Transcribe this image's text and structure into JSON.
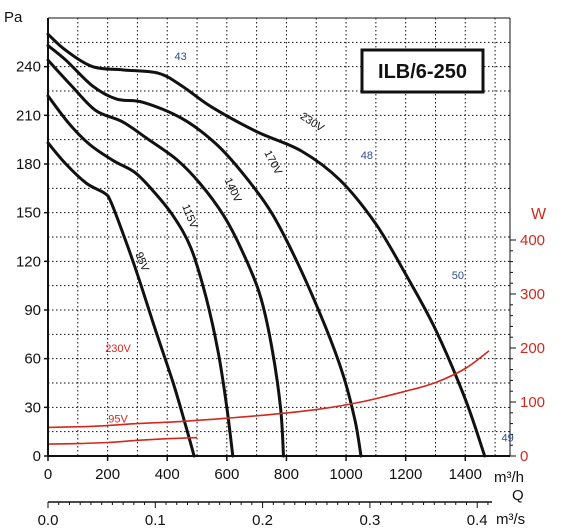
{
  "chart_data": {
    "type": "line",
    "title": "",
    "model_label": "ILB/6-250",
    "x_axis": {
      "unit": "m³/h",
      "range": [
        0,
        1550
      ],
      "ticks": [
        {
          "v": 0,
          "label": "0"
        },
        {
          "v": 200,
          "label": "200"
        },
        {
          "v": 400,
          "label": "400"
        },
        {
          "v": 600,
          "label": "600"
        },
        {
          "v": 800,
          "label": "800"
        },
        {
          "v": 1000,
          "label": "1000"
        },
        {
          "v": 1200,
          "label": "1200"
        },
        {
          "v": 1400,
          "label": "1400"
        }
      ]
    },
    "x2_axis": {
      "label": "Q",
      "unit": "m³/s",
      "ticks": [
        {
          "v": 0,
          "label": "0.0"
        },
        {
          "v": 360,
          "label": "0.1"
        },
        {
          "v": 720,
          "label": "0.2"
        },
        {
          "v": 1080,
          "label": "0.3"
        },
        {
          "v": 1440,
          "label": "0.4"
        }
      ]
    },
    "y_axis": {
      "unit": "Pa",
      "range": [
        0,
        270
      ],
      "ticks": [
        {
          "v": 0,
          "label": "0"
        },
        {
          "v": 30,
          "label": "30"
        },
        {
          "v": 60,
          "label": "60"
        },
        {
          "v": 90,
          "label": "90"
        },
        {
          "v": 120,
          "label": "120"
        },
        {
          "v": 150,
          "label": "150"
        },
        {
          "v": 180,
          "label": "180"
        },
        {
          "v": 210,
          "label": "210"
        },
        {
          "v": 240,
          "label": "240"
        }
      ]
    },
    "y2_axis": {
      "unit": "W",
      "range": [
        0,
        400
      ],
      "ticks": [
        {
          "v": 0,
          "label": "0"
        },
        {
          "v": 100,
          "label": "100"
        },
        {
          "v": 200,
          "label": "200"
        },
        {
          "v": 300,
          "label": "300"
        },
        {
          "v": 400,
          "label": "400"
        }
      ]
    },
    "grid": true,
    "pressure_series": [
      {
        "name": "230V",
        "label_at": {
          "x": 880,
          "y": 204,
          "rot": 33
        },
        "points": [
          [
            0,
            260
          ],
          [
            60,
            250
          ],
          [
            150,
            240
          ],
          [
            250,
            238
          ],
          [
            370,
            236
          ],
          [
            450,
            228
          ],
          [
            550,
            215
          ],
          [
            700,
            200
          ],
          [
            850,
            188
          ],
          [
            980,
            170
          ],
          [
            1100,
            143
          ],
          [
            1200,
            112
          ],
          [
            1300,
            78
          ],
          [
            1400,
            35
          ],
          [
            1465,
            0
          ]
        ]
      },
      {
        "name": "170V",
        "label_at": {
          "x": 745,
          "y": 180,
          "rot": 62
        },
        "points": [
          [
            0,
            253
          ],
          [
            60,
            244
          ],
          [
            150,
            228
          ],
          [
            230,
            220
          ],
          [
            320,
            218
          ],
          [
            450,
            208
          ],
          [
            560,
            193
          ],
          [
            650,
            175
          ],
          [
            750,
            150
          ],
          [
            840,
            118
          ],
          [
            930,
            80
          ],
          [
            990,
            50
          ],
          [
            1030,
            22
          ],
          [
            1050,
            0
          ]
        ]
      },
      {
        "name": "140V",
        "label_at": {
          "x": 610,
          "y": 163,
          "rot": 65
        },
        "points": [
          [
            0,
            244
          ],
          [
            80,
            228
          ],
          [
            160,
            213
          ],
          [
            250,
            206
          ],
          [
            330,
            196
          ],
          [
            430,
            183
          ],
          [
            510,
            168
          ],
          [
            590,
            148
          ],
          [
            650,
            127
          ],
          [
            710,
            100
          ],
          [
            750,
            68
          ],
          [
            780,
            30
          ],
          [
            790,
            0
          ]
        ]
      },
      {
        "name": "115V",
        "label_at": {
          "x": 465,
          "y": 147,
          "rot": 68
        },
        "points": [
          [
            0,
            222
          ],
          [
            70,
            205
          ],
          [
            140,
            192
          ],
          [
            220,
            182
          ],
          [
            290,
            175
          ],
          [
            350,
            164
          ],
          [
            420,
            148
          ],
          [
            480,
            128
          ],
          [
            530,
            98
          ],
          [
            570,
            65
          ],
          [
            600,
            30
          ],
          [
            620,
            0
          ]
        ]
      },
      {
        "name": "95V",
        "label_at": {
          "x": 305,
          "y": 119,
          "rot": 68
        },
        "points": [
          [
            0,
            193
          ],
          [
            60,
            180
          ],
          [
            130,
            168
          ],
          [
            190,
            162
          ],
          [
            210,
            157
          ],
          [
            250,
            138
          ],
          [
            300,
            112
          ],
          [
            360,
            78
          ],
          [
            420,
            45
          ],
          [
            460,
            20
          ],
          [
            490,
            0
          ]
        ]
      }
    ],
    "power_series": [
      {
        "name": "230V",
        "label_at": {
          "x": 235,
          "y": 185
        },
        "points": [
          [
            0,
            53
          ],
          [
            150,
            55
          ],
          [
            300,
            60
          ],
          [
            450,
            64
          ],
          [
            600,
            70
          ],
          [
            750,
            77
          ],
          [
            900,
            86
          ],
          [
            1050,
            100
          ],
          [
            1200,
            120
          ],
          [
            1300,
            136
          ],
          [
            1400,
            162
          ],
          [
            1480,
            195
          ]
        ]
      },
      {
        "name": "95V",
        "label_at": {
          "x": 235,
          "y": 55
        },
        "points": [
          [
            0,
            22
          ],
          [
            100,
            23
          ],
          [
            200,
            25
          ],
          [
            300,
            29
          ],
          [
            400,
            32
          ],
          [
            500,
            34
          ]
        ]
      }
    ],
    "noise_annotations": [
      {
        "label": "43",
        "x": 445,
        "y": 244
      },
      {
        "label": "48",
        "x": 1070,
        "y": 183
      },
      {
        "label": "50",
        "x": 1375,
        "y": 109
      },
      {
        "label": "49",
        "x": 1542,
        "y": 9
      }
    ]
  }
}
